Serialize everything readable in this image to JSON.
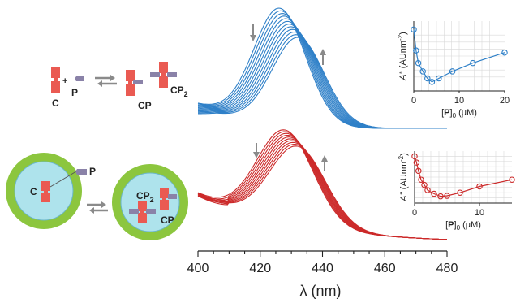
{
  "schemes": [
    {
      "labels": {
        "c": "C",
        "plus": "+",
        "p": "P",
        "cp": "CP",
        "cp2_base": "CP",
        "cp2_sub": "2"
      }
    },
    {
      "labels": {
        "p": "P",
        "c": "C",
        "cp2_base": "CP",
        "cp2_sub": "2",
        "cp": "CP"
      }
    }
  ],
  "colors": {
    "blue": "#2f80c8",
    "red": "#cc2a2a",
    "molecule": "#ea5a52",
    "ligand": "#8a82a8",
    "shell": "#8cc63e",
    "core": "#aee3ec",
    "arrow": "#8a8a8a"
  },
  "chart_data": [
    {
      "type": "line",
      "role": "spectra-top",
      "xlim": [
        400,
        480
      ],
      "x_ticks": [
        "400",
        "420",
        "440",
        "460",
        "480"
      ],
      "xlabel": "λ (nm)",
      "peak_start_nm": 426,
      "peak_end_nm": 432,
      "n_curves": 12,
      "trend_arrows": [
        "down",
        "up"
      ]
    },
    {
      "type": "line",
      "role": "spectra-bottom",
      "xlim": [
        400,
        480
      ],
      "peak_start_nm": 428,
      "peak_end_nm": 432,
      "n_curves": 10,
      "trend_arrows": [
        "down",
        "up"
      ]
    },
    {
      "type": "scatter",
      "role": "inset-top",
      "ylabel_main": "A''",
      "ylabel_unit": "(AUnm",
      "ylabel_exp": "-2",
      "ylabel_close": ")",
      "xlabel_open": "[",
      "xlabel_bold": "P",
      "xlabel_close": "]",
      "xlabel_sub": "0",
      "xlabel_unit": " (μM)",
      "xlim": [
        0,
        20
      ],
      "x_ticks": [
        "0",
        "10",
        "20"
      ],
      "points": [
        [
          0,
          0.88
        ],
        [
          0.5,
          0.58
        ],
        [
          1,
          0.4
        ],
        [
          2,
          0.28
        ],
        [
          3,
          0.18
        ],
        [
          4,
          0.13
        ],
        [
          5.5,
          0.18
        ],
        [
          8.5,
          0.28
        ],
        [
          13,
          0.4
        ],
        [
          20,
          0.55
        ]
      ]
    },
    {
      "type": "scatter",
      "role": "inset-bottom",
      "ylabel_main": "A''",
      "ylabel_unit": "(AUnm",
      "ylabel_exp": "-2",
      "ylabel_close": ")",
      "xlabel_open": "[",
      "xlabel_bold": "P",
      "xlabel_close": "]",
      "xlabel_sub": "0",
      "xlabel_unit": " (μM)",
      "xlim": [
        0,
        15
      ],
      "x_ticks": [
        "0",
        "10"
      ],
      "points": [
        [
          0,
          0.9
        ],
        [
          0.3,
          0.78
        ],
        [
          0.6,
          0.62
        ],
        [
          1,
          0.45
        ],
        [
          1.5,
          0.35
        ],
        [
          2,
          0.25
        ],
        [
          3,
          0.18
        ],
        [
          4,
          0.13
        ],
        [
          5,
          0.14
        ],
        [
          7,
          0.2
        ],
        [
          10,
          0.32
        ],
        [
          15,
          0.45
        ]
      ]
    }
  ]
}
